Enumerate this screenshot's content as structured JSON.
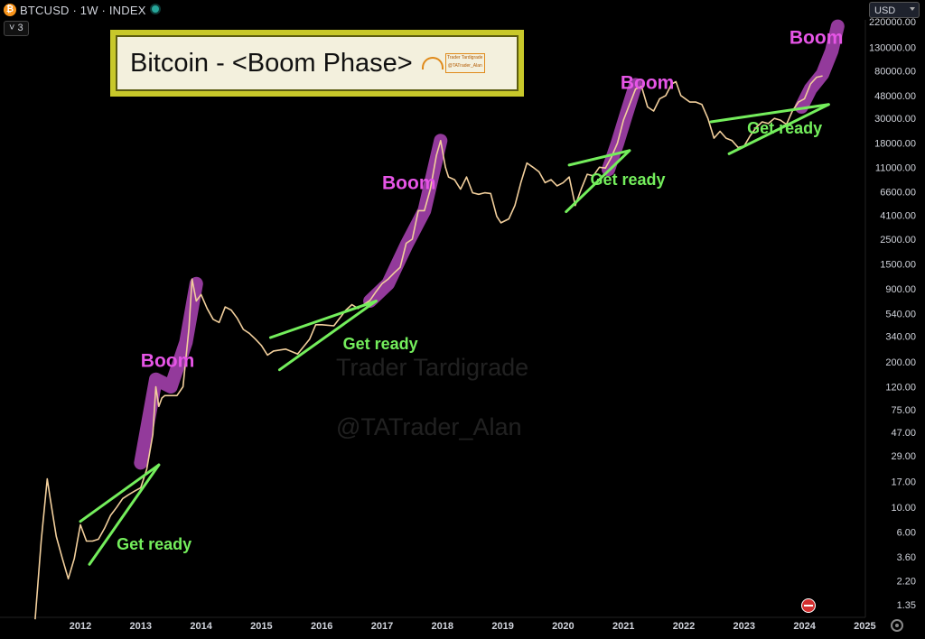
{
  "header": {
    "symbol": "BTCUSD · 1W · INDEX",
    "btc_logo_glyph": "₿",
    "collapse_label": "˅ 3",
    "currency": "USD",
    "live_dot_color": "#26a69a"
  },
  "title_box": {
    "title": "Bitcoin - <Boom Phase>",
    "stamp_line1": "Trader Tardigrade",
    "stamp_line2": "@TATrader_Alan"
  },
  "watermarks": [
    "Trader Tardigrade",
    "@TATrader_Alan"
  ],
  "icons": [
    "bitcoin-logo-icon",
    "live-status-dot-icon",
    "collapse-chevron-icon",
    "dropdown-caret-icon",
    "us-flag-icon",
    "settings-gear-icon"
  ],
  "chart_data": {
    "type": "line",
    "title": "Bitcoin - <Boom Phase>",
    "y_scale": "log",
    "y_ticks": [
      1.35,
      2.2,
      3.6,
      6.0,
      10.0,
      17.0,
      29.0,
      47.0,
      75.0,
      120.0,
      200.0,
      340.0,
      540.0,
      900.0,
      1500.0,
      2500.0,
      4100.0,
      6600.0,
      11000.0,
      18000.0,
      30000.0,
      48000.0,
      80000.0,
      130000.0,
      220000.0
    ],
    "y_tick_labels": [
      "1.35",
      "2.20",
      "3.60",
      "6.00",
      "10.00",
      "17.00",
      "29.00",
      "47.00",
      "75.00",
      "120.00",
      "200.00",
      "340.00",
      "540.00",
      "900.00",
      "1500.00",
      "2500.00",
      "4100.00",
      "6600.00",
      "11000.00",
      "18000.00",
      "30000.00",
      "48000.00",
      "80000.00",
      "130000.00",
      "220000.00"
    ],
    "x_ticks": [
      2012,
      2013,
      2014,
      2015,
      2016,
      2017,
      2018,
      2019,
      2020,
      2021,
      2022,
      2023,
      2024,
      2025
    ],
    "x_tick_labels": [
      "2012",
      "2013",
      "2014",
      "2015",
      "2016",
      "2017",
      "2018",
      "2019",
      "2020",
      "2021",
      "2022",
      "2023",
      "2024",
      "2025"
    ],
    "price_line_color": "#f2cf9c",
    "series": [
      {
        "x": [
          2011.25,
          2011.35,
          2011.45,
          2011.5,
          2011.6,
          2011.7,
          2011.8,
          2011.9,
          2011.95,
          2012.0,
          2012.1,
          2012.2,
          2012.3,
          2012.4,
          2012.5,
          2012.6,
          2012.7,
          2012.8,
          2012.9,
          2013.0,
          2013.1,
          2013.2,
          2013.25,
          2013.3,
          2013.35,
          2013.4,
          2013.5,
          2013.6,
          2013.7,
          2013.8,
          2013.85,
          2013.92,
          2014.0,
          2014.1,
          2014.2,
          2014.3,
          2014.4,
          2014.5,
          2014.6,
          2014.7,
          2014.8,
          2014.9,
          2015.0,
          2015.1,
          2015.2,
          2015.4,
          2015.6,
          2015.8,
          2015.9,
          2016.0,
          2016.2,
          2016.4,
          2016.5,
          2016.6,
          2016.8,
          2016.9,
          2017.0,
          2017.1,
          2017.2,
          2017.3,
          2017.4,
          2017.5,
          2017.6,
          2017.7,
          2017.8,
          2017.9,
          2017.97,
          2018.05,
          2018.1,
          2018.2,
          2018.3,
          2018.4,
          2018.5,
          2018.6,
          2018.7,
          2018.8,
          2018.9,
          2018.97,
          2019.1,
          2019.2,
          2019.3,
          2019.4,
          2019.5,
          2019.6,
          2019.7,
          2019.8,
          2019.9,
          2020.0,
          2020.1,
          2020.2,
          2020.3,
          2020.4,
          2020.5,
          2020.6,
          2020.7,
          2020.8,
          2020.9,
          2021.0,
          2021.1,
          2021.2,
          2021.3,
          2021.4,
          2021.5,
          2021.6,
          2021.7,
          2021.8,
          2021.87,
          2021.95,
          2022.1,
          2022.2,
          2022.3,
          2022.4,
          2022.5,
          2022.6,
          2022.7,
          2022.8,
          2022.9,
          2023.0,
          2023.1,
          2023.2,
          2023.3,
          2023.4,
          2023.5,
          2023.6,
          2023.7,
          2023.8,
          2023.9,
          2024.0,
          2024.1,
          2024.2,
          2024.3
        ],
        "y": [
          1,
          5,
          18,
          12,
          5.5,
          3.5,
          2.3,
          3.5,
          5,
          7,
          5,
          5,
          5.2,
          6.5,
          8.5,
          10,
          12,
          13,
          14,
          15,
          22,
          45,
          120,
          80,
          95,
          100,
          100,
          100,
          120,
          400,
          1100,
          700,
          800,
          600,
          480,
          450,
          620,
          580,
          490,
          390,
          360,
          320,
          280,
          230,
          250,
          260,
          235,
          320,
          430,
          430,
          420,
          580,
          650,
          600,
          710,
          850,
          1000,
          1100,
          1250,
          1400,
          2300,
          2500,
          4500,
          4500,
          7000,
          14000,
          19000,
          11000,
          9000,
          8500,
          7000,
          9000,
          6500,
          6300,
          6500,
          6400,
          4000,
          3500,
          3800,
          5000,
          8000,
          12000,
          11000,
          10000,
          8000,
          8500,
          7500,
          8000,
          9000,
          5000,
          7000,
          9500,
          9200,
          11000,
          10800,
          13500,
          18000,
          29000,
          40000,
          55000,
          58000,
          38000,
          35000,
          45000,
          48000,
          61000,
          64000,
          48000,
          42000,
          42000,
          40000,
          30000,
          20000,
          23000,
          20000,
          19000,
          16500,
          17000,
          21000,
          25000,
          28000,
          27000,
          30000,
          29000,
          26500,
          35000,
          42000,
          45000,
          61000,
          70000,
          72000
        ],
        "color": "#f2cf9c"
      }
    ],
    "highlights": [
      {
        "x": [
          2013.0,
          2013.25,
          2013.5,
          2013.75,
          2013.92
        ],
        "y": [
          25,
          140,
          120,
          300,
          1000
        ],
        "color": "#9b3da3"
      },
      {
        "x": [
          2016.8,
          2017.1,
          2017.4,
          2017.7,
          2017.97
        ],
        "y": [
          700,
          1000,
          2200,
          4500,
          19000
        ],
        "color": "#9b3da3"
      },
      {
        "x": [
          2020.75,
          2020.9,
          2021.05,
          2021.2
        ],
        "y": [
          10500,
          18000,
          33000,
          60000
        ],
        "color": "#9b3da3"
      },
      {
        "x": [
          2023.95,
          2024.1,
          2024.3,
          2024.45,
          2024.55
        ],
        "y": [
          38000,
          55000,
          75000,
          120000,
          200000
        ],
        "color": "#9b3da3"
      }
    ],
    "annotations": {
      "boom_label": "Boom",
      "get_ready_label": "Get ready",
      "boom_color": "#e655e6",
      "ready_color": "#74ee5c",
      "boom_points": [
        {
          "x": 2013.0,
          "y": 180
        },
        {
          "x": 2017.0,
          "y": 7000
        },
        {
          "x": 2020.95,
          "y": 55000
        },
        {
          "x": 2023.75,
          "y": 140000
        }
      ],
      "ready_points": [
        {
          "x": 2012.6,
          "y": 4.2
        },
        {
          "x": 2016.35,
          "y": 260
        },
        {
          "x": 2020.45,
          "y": 7600
        },
        {
          "x": 2023.05,
          "y": 22000
        }
      ],
      "trendlines": [
        {
          "x": [
            2012.0,
            2013.3
          ],
          "y": [
            7.5,
            24
          ]
        },
        {
          "x": [
            2012.15,
            2013.3
          ],
          "y": [
            3.1,
            24
          ]
        },
        {
          "x": [
            2015.15,
            2016.9
          ],
          "y": [
            330,
            700
          ]
        },
        {
          "x": [
            2015.3,
            2016.9
          ],
          "y": [
            170,
            700
          ]
        },
        {
          "x": [
            2020.1,
            2021.1
          ],
          "y": [
            11500,
            15500
          ]
        },
        {
          "x": [
            2020.05,
            2021.1
          ],
          "y": [
            4400,
            15500
          ]
        },
        {
          "x": [
            2022.45,
            2024.4
          ],
          "y": [
            28000,
            40000
          ]
        },
        {
          "x": [
            2022.75,
            2024.4
          ],
          "y": [
            14500,
            40000
          ]
        }
      ]
    }
  }
}
